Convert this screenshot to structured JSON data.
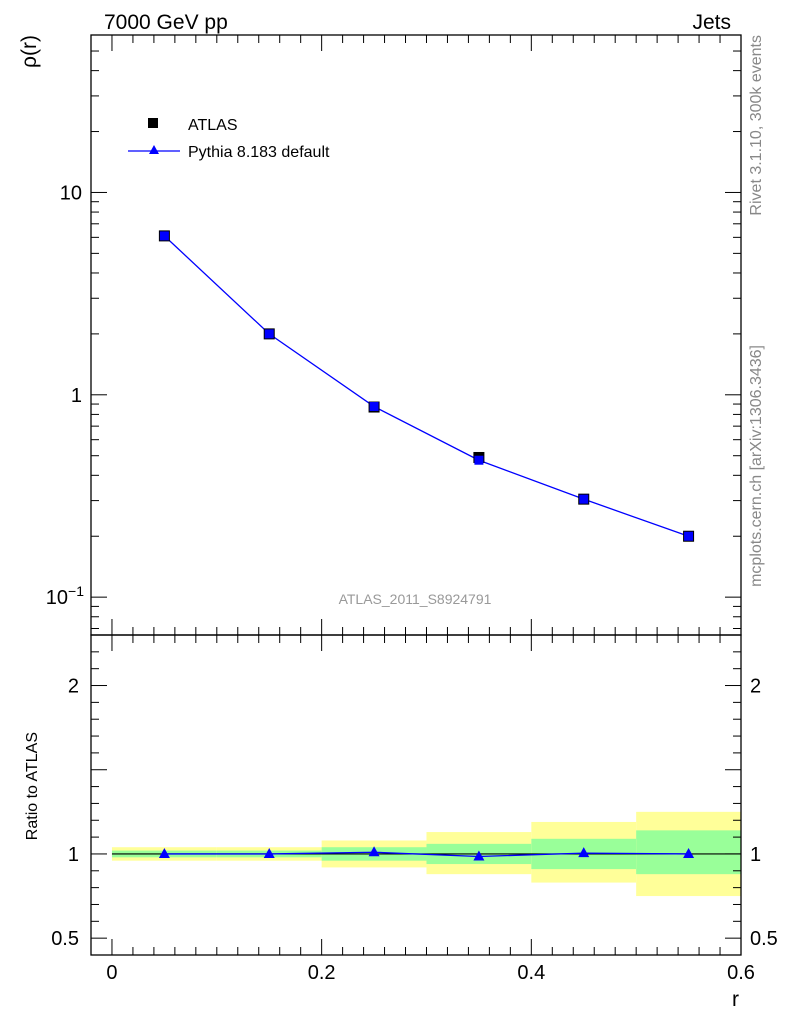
{
  "header": {
    "left_title": "7000 GeV pp",
    "right_title": "Jets"
  },
  "side_text": {
    "rivet": "Rivet 3.1.10,  300k events",
    "mcplots": "mcplots.cern.ch [arXiv:1306.3436]"
  },
  "watermark": "ATLAS_2011_S8924791",
  "colors": {
    "data_marker": "#000000",
    "mc_line": "#0000ff",
    "band_inner": "#99ff99",
    "band_outer": "#ffff99"
  },
  "chart_data": [
    {
      "type": "line",
      "panel": "main",
      "ylabel": "ρ(r)",
      "yscale": "log",
      "ylim": [
        0.065,
        60
      ],
      "xlim": [
        -0.02,
        0.6
      ],
      "yticks": [
        {
          "value": 0.1,
          "label": "10",
          "exp": "−1"
        },
        {
          "value": 1,
          "label": "1",
          "exp": ""
        },
        {
          "value": 10,
          "label": "10",
          "exp": ""
        }
      ],
      "legend": {
        "placement": "top-left",
        "entries": [
          "ATLAS",
          "Pythia 8.183 default"
        ]
      },
      "series": [
        {
          "name": "ATLAS",
          "marker": "square",
          "x": [
            0.05,
            0.15,
            0.25,
            0.35,
            0.45,
            0.55
          ],
          "y": [
            6.1,
            2.0,
            0.87,
            0.49,
            0.305,
            0.2
          ]
        },
        {
          "name": "Pythia 8.183 default",
          "marker": "triangle",
          "x": [
            0.05,
            0.15,
            0.25,
            0.35,
            0.45,
            0.55
          ],
          "y": [
            6.1,
            2.0,
            0.875,
            0.475,
            0.305,
            0.2
          ]
        }
      ]
    },
    {
      "type": "line",
      "panel": "ratio",
      "ylabel": "Ratio to ATLAS",
      "xlabel": "r",
      "ylim": [
        0.4,
        2.3
      ],
      "xlim": [
        -0.02,
        0.6
      ],
      "xticks": [
        {
          "value": 0,
          "label": "0"
        },
        {
          "value": 0.2,
          "label": "0.2"
        },
        {
          "value": 0.4,
          "label": "0.4"
        },
        {
          "value": 0.6,
          "label": "0.6"
        }
      ],
      "yticks": [
        {
          "value": 0.5,
          "label": "0.5"
        },
        {
          "value": 1,
          "label": "1"
        },
        {
          "value": 2,
          "label": "2"
        }
      ],
      "bands": [
        {
          "x0": 0.0,
          "x1": 0.1,
          "inner": [
            0.98,
            1.02
          ],
          "outer": [
            0.96,
            1.04
          ]
        },
        {
          "x0": 0.1,
          "x1": 0.2,
          "inner": [
            0.98,
            1.02
          ],
          "outer": [
            0.96,
            1.04
          ]
        },
        {
          "x0": 0.2,
          "x1": 0.3,
          "inner": [
            0.96,
            1.04
          ],
          "outer": [
            0.92,
            1.08
          ]
        },
        {
          "x0": 0.3,
          "x1": 0.4,
          "inner": [
            0.94,
            1.06
          ],
          "outer": [
            0.88,
            1.13
          ]
        },
        {
          "x0": 0.4,
          "x1": 0.5,
          "inner": [
            0.91,
            1.09
          ],
          "outer": [
            0.83,
            1.19
          ]
        },
        {
          "x0": 0.5,
          "x1": 0.6,
          "inner": [
            0.88,
            1.14
          ],
          "outer": [
            0.75,
            1.25
          ]
        }
      ],
      "series": [
        {
          "name": "Pythia 8.183 default",
          "marker": "triangle",
          "x": [
            0.05,
            0.15,
            0.25,
            0.35,
            0.45,
            0.55
          ],
          "y": [
            1.0,
            1.0,
            1.01,
            0.985,
            1.005,
            1.0
          ]
        }
      ]
    }
  ]
}
